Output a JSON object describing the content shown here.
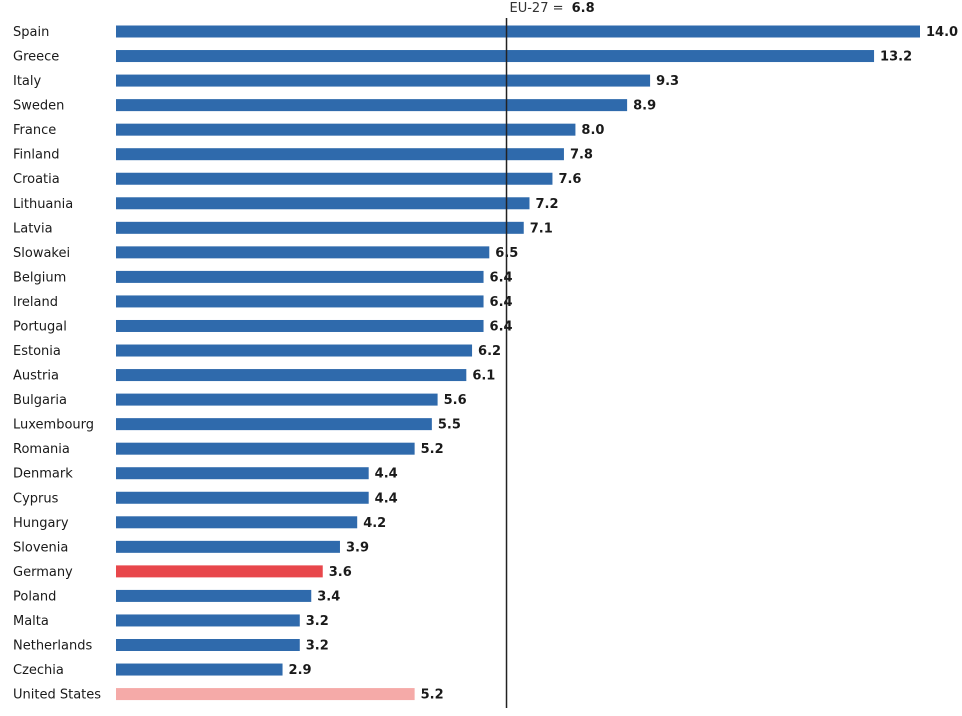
{
  "chart_data": {
    "type": "bar",
    "orientation": "horizontal",
    "categories": [
      "Spain",
      "Greece",
      "Italy",
      "Sweden",
      "France",
      "Finland",
      "Croatia",
      "Lithuania",
      "Latvia",
      "Slowakei",
      "Belgium",
      "Ireland",
      "Portugal",
      "Estonia",
      "Austria",
      "Bulgaria",
      "Luxembourg",
      "Romania",
      "Denmark",
      "Cyprus",
      "Hungary",
      "Slovenia",
      "Germany",
      "Poland",
      "Malta",
      "Netherlands",
      "Czechia",
      "United States"
    ],
    "values": [
      14.0,
      13.2,
      9.3,
      8.9,
      8.0,
      7.8,
      7.6,
      7.2,
      7.1,
      6.5,
      6.4,
      6.4,
      6.4,
      6.2,
      6.1,
      5.6,
      5.5,
      5.2,
      4.4,
      4.4,
      4.2,
      3.9,
      3.6,
      3.4,
      3.2,
      3.2,
      2.9,
      5.2
    ],
    "value_labels": [
      "14.0",
      "13.2",
      "9.3",
      "8.9",
      "8.0",
      "7.8",
      "7.6",
      "7.2",
      "7.1",
      "6.5",
      "6.4",
      "6.4",
      "6.4",
      "6.2",
      "6.1",
      "5.6",
      "5.5",
      "5.2",
      "4.4",
      "4.4",
      "4.2",
      "3.9",
      "3.6",
      "3.4",
      "3.2",
      "3.2",
      "2.9",
      "5.2"
    ],
    "xlim": [
      0,
      14.0
    ],
    "reference_line": {
      "label": "EU-27 =",
      "value": 6.8,
      "value_label": "6.8"
    },
    "colors": {
      "default": "#2f6aac",
      "highlight": "#e8474b",
      "comparison": "#f5aaa8",
      "reference": "#222222"
    },
    "highlight": "Germany",
    "comparison": "United States"
  }
}
